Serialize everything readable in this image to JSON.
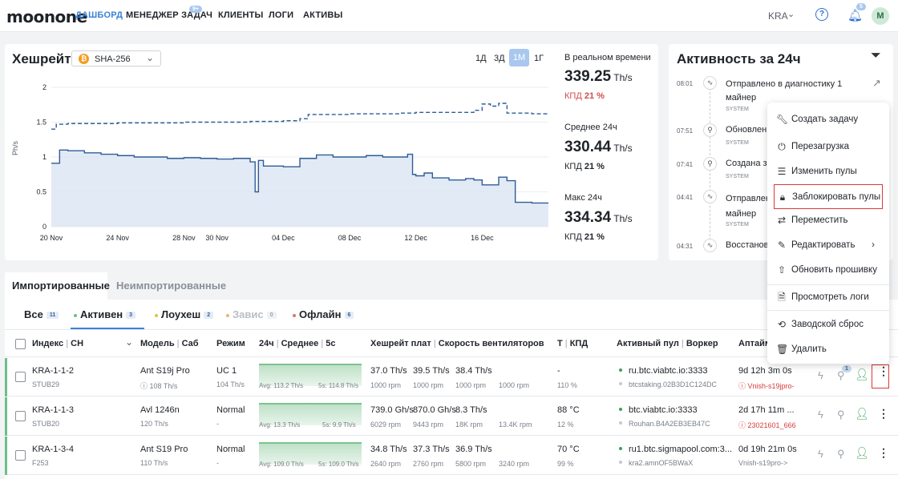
{
  "header": {
    "logo": "moonone",
    "nav": [
      "ДАШБОРД",
      "МЕНЕДЖЕР ЗАДАЧ",
      "КЛИЕНТЫ",
      "ЛОГИ",
      "АКТИВЫ"
    ],
    "tasks_badge": "9+",
    "region": "KRA",
    "notif_badge": "5",
    "avatar": "M"
  },
  "hashrate": {
    "title": "Хешрейт",
    "algo": "SHA-256",
    "ranges": [
      "1Д",
      "3Д",
      "1М",
      "1Г"
    ],
    "active_range": "1М",
    "realtime_label": "В реальном времени",
    "realtime_value": "339.25",
    "realtime_unit": "Th/s",
    "realtime_eff_label": "КПД",
    "realtime_eff": "21 %",
    "avg_label": "Среднее 24ч",
    "avg_value": "330.44",
    "avg_unit": "Th/s",
    "avg_eff_label": "КПД",
    "avg_eff": "21 %",
    "max_label": "Макс 24ч",
    "max_value": "334.34",
    "max_unit": "Th/s",
    "max_eff_label": "КПД",
    "max_eff": "21 %"
  },
  "chart_data": {
    "type": "line",
    "ylabel": "Ph/s",
    "ylim": [
      0,
      2
    ],
    "yticks": [
      "0",
      "0.5",
      "1",
      "1.5",
      "2"
    ],
    "x_ticks": [
      "20 Nov",
      "24 Nov",
      "28 Nov",
      "30 Nov",
      "04 Dec",
      "08 Dec",
      "12 Dec",
      "16 Dec"
    ],
    "x_range": [
      0,
      30
    ],
    "x_tick_pos": [
      0,
      4,
      8,
      10,
      14,
      18,
      22,
      26
    ],
    "grid": true,
    "series": [
      {
        "style": "dashed",
        "x": [
          0,
          0.3,
          1,
          2,
          4,
          6,
          8,
          10,
          12,
          14,
          15,
          15.5,
          18,
          20,
          21,
          22,
          24,
          25,
          25.5,
          26,
          26.5,
          27,
          27.5,
          28,
          29,
          30
        ],
        "values": [
          1.4,
          1.47,
          1.48,
          1.48,
          1.49,
          1.49,
          1.5,
          1.5,
          1.51,
          1.52,
          1.55,
          1.61,
          1.62,
          1.62,
          1.63,
          1.64,
          1.64,
          1.64,
          1.67,
          1.76,
          1.73,
          1.77,
          1.63,
          1.63,
          1.62,
          1.62
        ]
      },
      {
        "style": "solid",
        "area": true,
        "x": [
          0,
          0.5,
          1,
          2,
          3,
          4,
          5,
          6,
          7,
          8,
          9,
          10,
          11,
          12,
          12.3,
          12.5,
          12.8,
          14,
          15,
          16,
          17,
          18,
          19,
          20,
          21,
          21.5,
          21.8,
          22,
          22.5,
          23,
          24,
          25,
          25.5,
          26,
          27,
          27.5,
          28,
          29,
          30
        ],
        "values": [
          0.91,
          1.1,
          1.09,
          1.06,
          1.04,
          1.02,
          1.0,
          1.0,
          0.98,
          0.99,
          0.98,
          0.97,
          0.98,
          0.93,
          0.5,
          0.95,
          0.87,
          0.86,
          0.98,
          1.03,
          1.0,
          1.0,
          1.02,
          1.0,
          1.0,
          1.04,
          0.75,
          0.73,
          0.77,
          0.7,
          0.67,
          0.69,
          0.67,
          0.6,
          0.71,
          0.66,
          0.35,
          0.34,
          0.34
        ]
      }
    ]
  },
  "activity": {
    "title": "Активность за 24ч",
    "items": [
      {
        "time": "08:01",
        "text": "Отправлено в диагностику 1 майнер",
        "src": "SYSTEM"
      },
      {
        "time": "07:51",
        "text": "Обновлен с",
        "src": "SYSTEM"
      },
      {
        "time": "07:41",
        "text": "Создана за",
        "src": "SYSTEM"
      },
      {
        "time": "04:41",
        "text": "Отправлен майнер",
        "src": "SYSTEM"
      },
      {
        "time": "04:31",
        "text": "Восстанов",
        "src": ""
      }
    ]
  },
  "context_menu": {
    "items": [
      {
        "label": "Создать задачу",
        "icon": "wrench-icon"
      },
      {
        "label": "Перезагрузка",
        "icon": "restart-icon"
      },
      {
        "label": "Изменить пулы",
        "icon": "sliders-icon"
      },
      {
        "label": "Заблокировать пулы",
        "icon": "lock-icon"
      },
      {
        "label": "Переместить",
        "icon": "move-icon"
      },
      {
        "label": "Редактировать",
        "icon": "pencil-icon"
      },
      {
        "label": "Обновить прошивку",
        "icon": "upload-icon"
      },
      {
        "label": "Просмотреть логи",
        "icon": "file-icon"
      },
      {
        "label": "Заводской сброс",
        "icon": "reset-icon"
      },
      {
        "label": "Удалить",
        "icon": "trash-icon"
      }
    ]
  },
  "tabs": {
    "imported": "Импортированные",
    "not_imported": "Неимпортированные"
  },
  "filters": [
    {
      "label": "Все",
      "count": "11"
    },
    {
      "label": "Активен",
      "count": "3"
    },
    {
      "label": "Лоухеш",
      "count": "2"
    },
    {
      "label": "Завис",
      "count": "0"
    },
    {
      "label": "Офлайн",
      "count": "6"
    }
  ],
  "colors": {
    "active": "#6cbf88",
    "lowhash": "#e6c04a",
    "hang": "#f0b27a",
    "offline": "#e07070",
    "accent": "#3b82d6"
  },
  "table": {
    "headers": {
      "index": "Индекс",
      "sn": "СН",
      "model": "Модель",
      "sub": "Саб",
      "mode": "Режим",
      "h24": "24ч",
      "avg": "Среднее",
      "s5": "5с",
      "hash_plate": "Хешрейт плат",
      "fan": "Скорость вентиляторов",
      "t": "Т",
      "eff": "КПД",
      "pool": "Активный пул",
      "worker": "Воркер",
      "uptime": "Аптайм"
    },
    "rows": [
      {
        "index": "KRA-1-1-2",
        "sn": "STUB29",
        "model": "Ant S19j Pro",
        "model_sub": "108 Th/s",
        "mode": "UC 1",
        "mode_sub": "104 Th/s",
        "spark_avg": "Avg: 113.2 Th/s",
        "spark_5s": "5s: 114.8 Th/s",
        "plates": [
          "37.0 Th/s",
          "39.5 Th/s",
          "38.4 Th/s"
        ],
        "fans": [
          "1000 rpm",
          "1000 rpm",
          "1000 rpm",
          "1000 rpm"
        ],
        "temp": "-",
        "eff": "110 %",
        "pool": "ru.btc.viabtc.io:3333",
        "worker": "btcstaking.02B3D1C124DC",
        "uptime": "9d 12h 3m 0s",
        "uptime_sub": "Vnish-s19jpro-",
        "tool_badge": "1"
      },
      {
        "index": "KRA-1-1-3",
        "sn": "STUB20",
        "model": "Avl 1246n",
        "model_sub": "120 Th/s",
        "mode": "Normal",
        "mode_sub": "-",
        "spark_avg": "Avg: 13.3 Th/s",
        "spark_5s": "5s: 9.9 Th/s",
        "plates": [
          "739.0 Gh/s",
          "870.0 Gh/s",
          "8.3 Th/s"
        ],
        "fans": [
          "6029 rpm",
          "9443 rpm",
          "18K rpm",
          "13.4K rpm"
        ],
        "temp": "88 °C",
        "eff": "12 %",
        "pool": "btc.viabtc.io:3333",
        "worker": "Rouhan.B4A2EB3EB47C",
        "uptime": "2d 17h 11m ...",
        "uptime_sub": "23021601_666"
      },
      {
        "index": "KRA-1-3-4",
        "sn": "F253",
        "model": "Ant S19 Pro",
        "model_sub": "110 Th/s",
        "mode": "Normal",
        "mode_sub": "-",
        "spark_avg": "Avg: 109.0 Th/s",
        "spark_5s": "5s: 109.0 Th/s",
        "plates": [
          "34.8 Th/s",
          "37.3 Th/s",
          "36.9 Th/s"
        ],
        "fans": [
          "2640 rpm",
          "2760 rpm",
          "5800 rpm",
          "3240 rpm"
        ],
        "temp": "70 °C",
        "eff": "99 %",
        "pool": "ru1.btc.sigmapool.com:3...",
        "worker": "kra2.amnOF5BWaX",
        "uptime": "0d 19h 21m 0s",
        "uptime_sub": "Vnish-s19pro->"
      }
    ]
  }
}
